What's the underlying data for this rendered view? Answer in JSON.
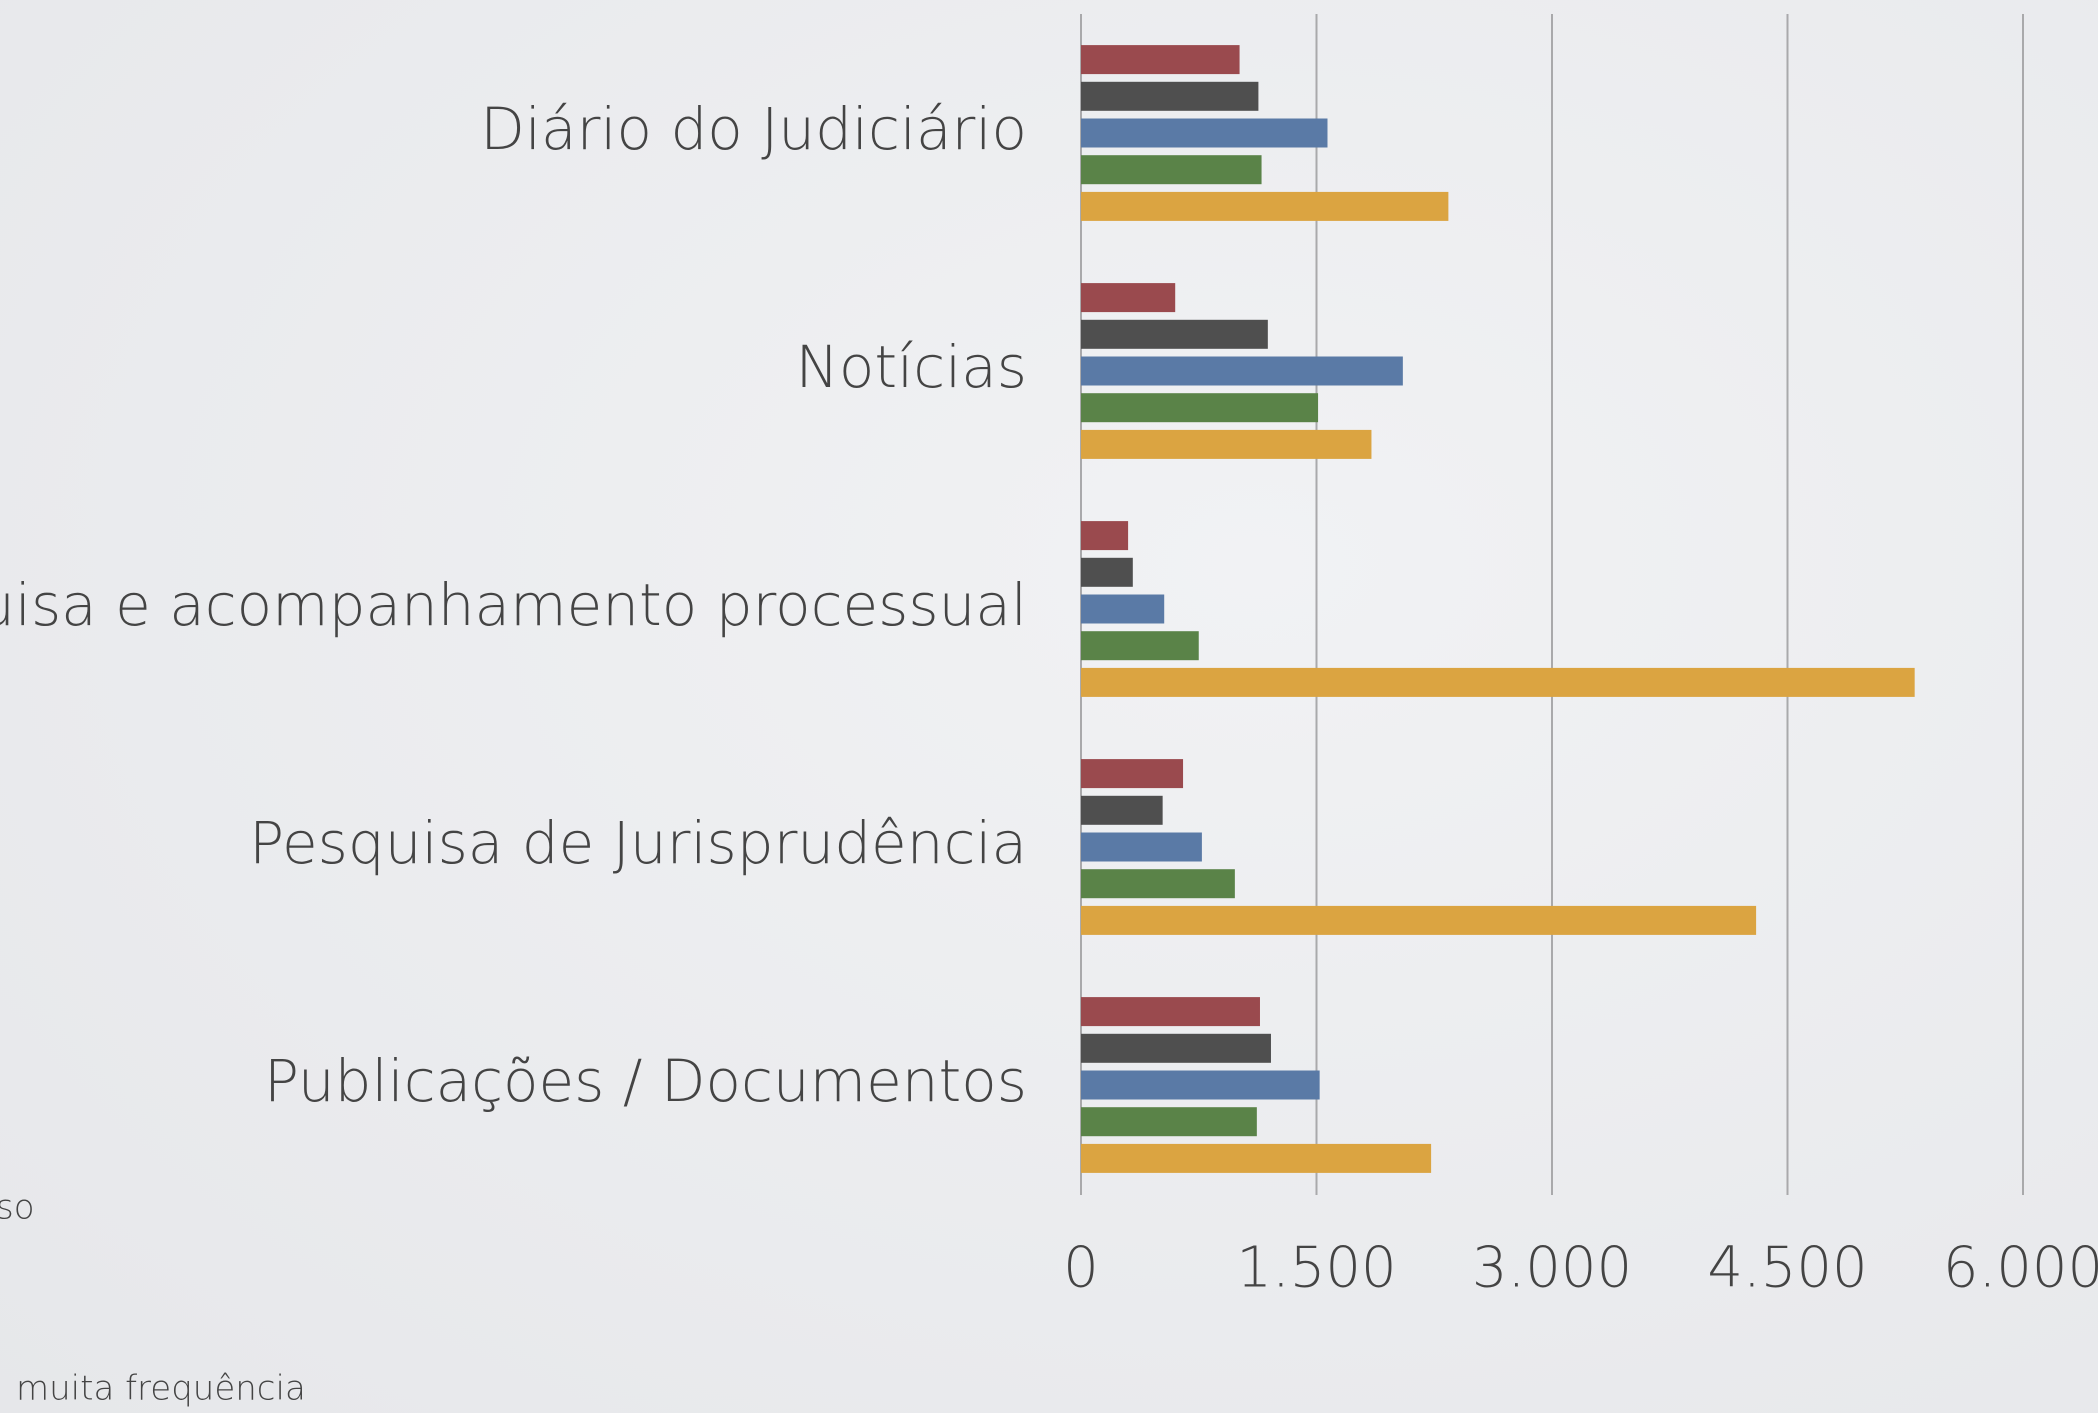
{
  "chart_data": {
    "type": "bar",
    "orientation": "horizontal",
    "categories": [
      "Diário do Judiciário",
      "Notícias",
      "Pesquisa e acompanhamento processual",
      "Pesquisa de Jurisprudência",
      "Publicações / Documentos"
    ],
    "series": [
      {
        "color": "#9a4a4e",
        "values": [
          1010,
          600,
          300,
          650,
          1140
        ]
      },
      {
        "color": "#4f4f4f",
        "values": [
          1130,
          1190,
          330,
          520,
          1210
        ]
      },
      {
        "color": "#5a7aa6",
        "values": [
          1570,
          2050,
          530,
          770,
          1520
        ]
      },
      {
        "color": "#5a8348",
        "values": [
          1150,
          1510,
          750,
          980,
          1120
        ]
      },
      {
        "color": "#dba441",
        "values": [
          2340,
          1850,
          5310,
          4300,
          2230
        ]
      }
    ],
    "xlim": [
      0,
      6000
    ],
    "xticks": [
      0,
      {
        "value": 1500,
        "label": "1.500"
      },
      {
        "value": 3000,
        "label": "3.000"
      },
      {
        "value": 4500,
        "label": "4.500"
      },
      {
        "value": 6000,
        "label": "6.000"
      }
    ],
    "grid": true,
    "legend_fragments": [
      "so",
      "muita frequência"
    ]
  }
}
